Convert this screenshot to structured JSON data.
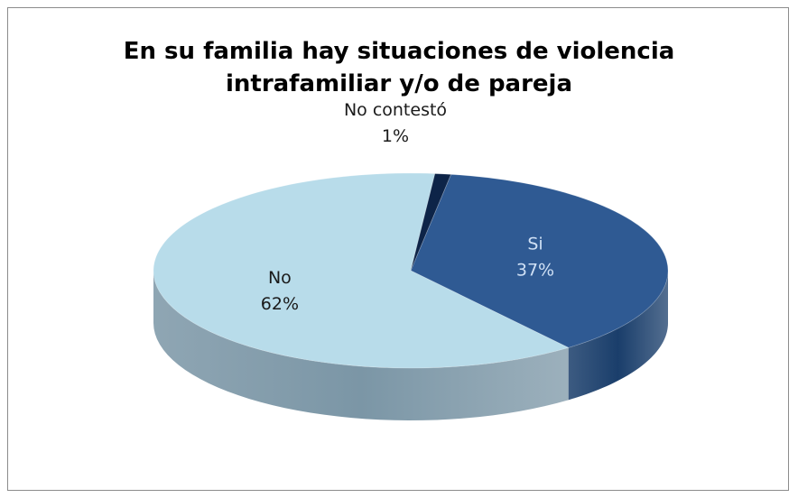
{
  "chart_data": {
    "type": "pie",
    "style": "3d",
    "title_lines": [
      "En su familia hay situaciones de violencia",
      "intrafamiliar y/o de pareja"
    ],
    "categories": [
      "Si",
      "No",
      "No contestó"
    ],
    "values": [
      37,
      62,
      1
    ],
    "value_labels": [
      "37%",
      "62%",
      "1%"
    ],
    "colors": {
      "Si": "#2f5a93",
      "No": "#b8dcea",
      "No contestó": "#0d2448"
    },
    "side_colors": {
      "Si": "#1a3e6b",
      "No": "#7b96a6",
      "No contestó": "#081830"
    },
    "label_colors": {
      "Si": "#cfe0f5",
      "No": "#1a1a1a",
      "No contestó": "#1a1a1a"
    },
    "legend": "none"
  }
}
